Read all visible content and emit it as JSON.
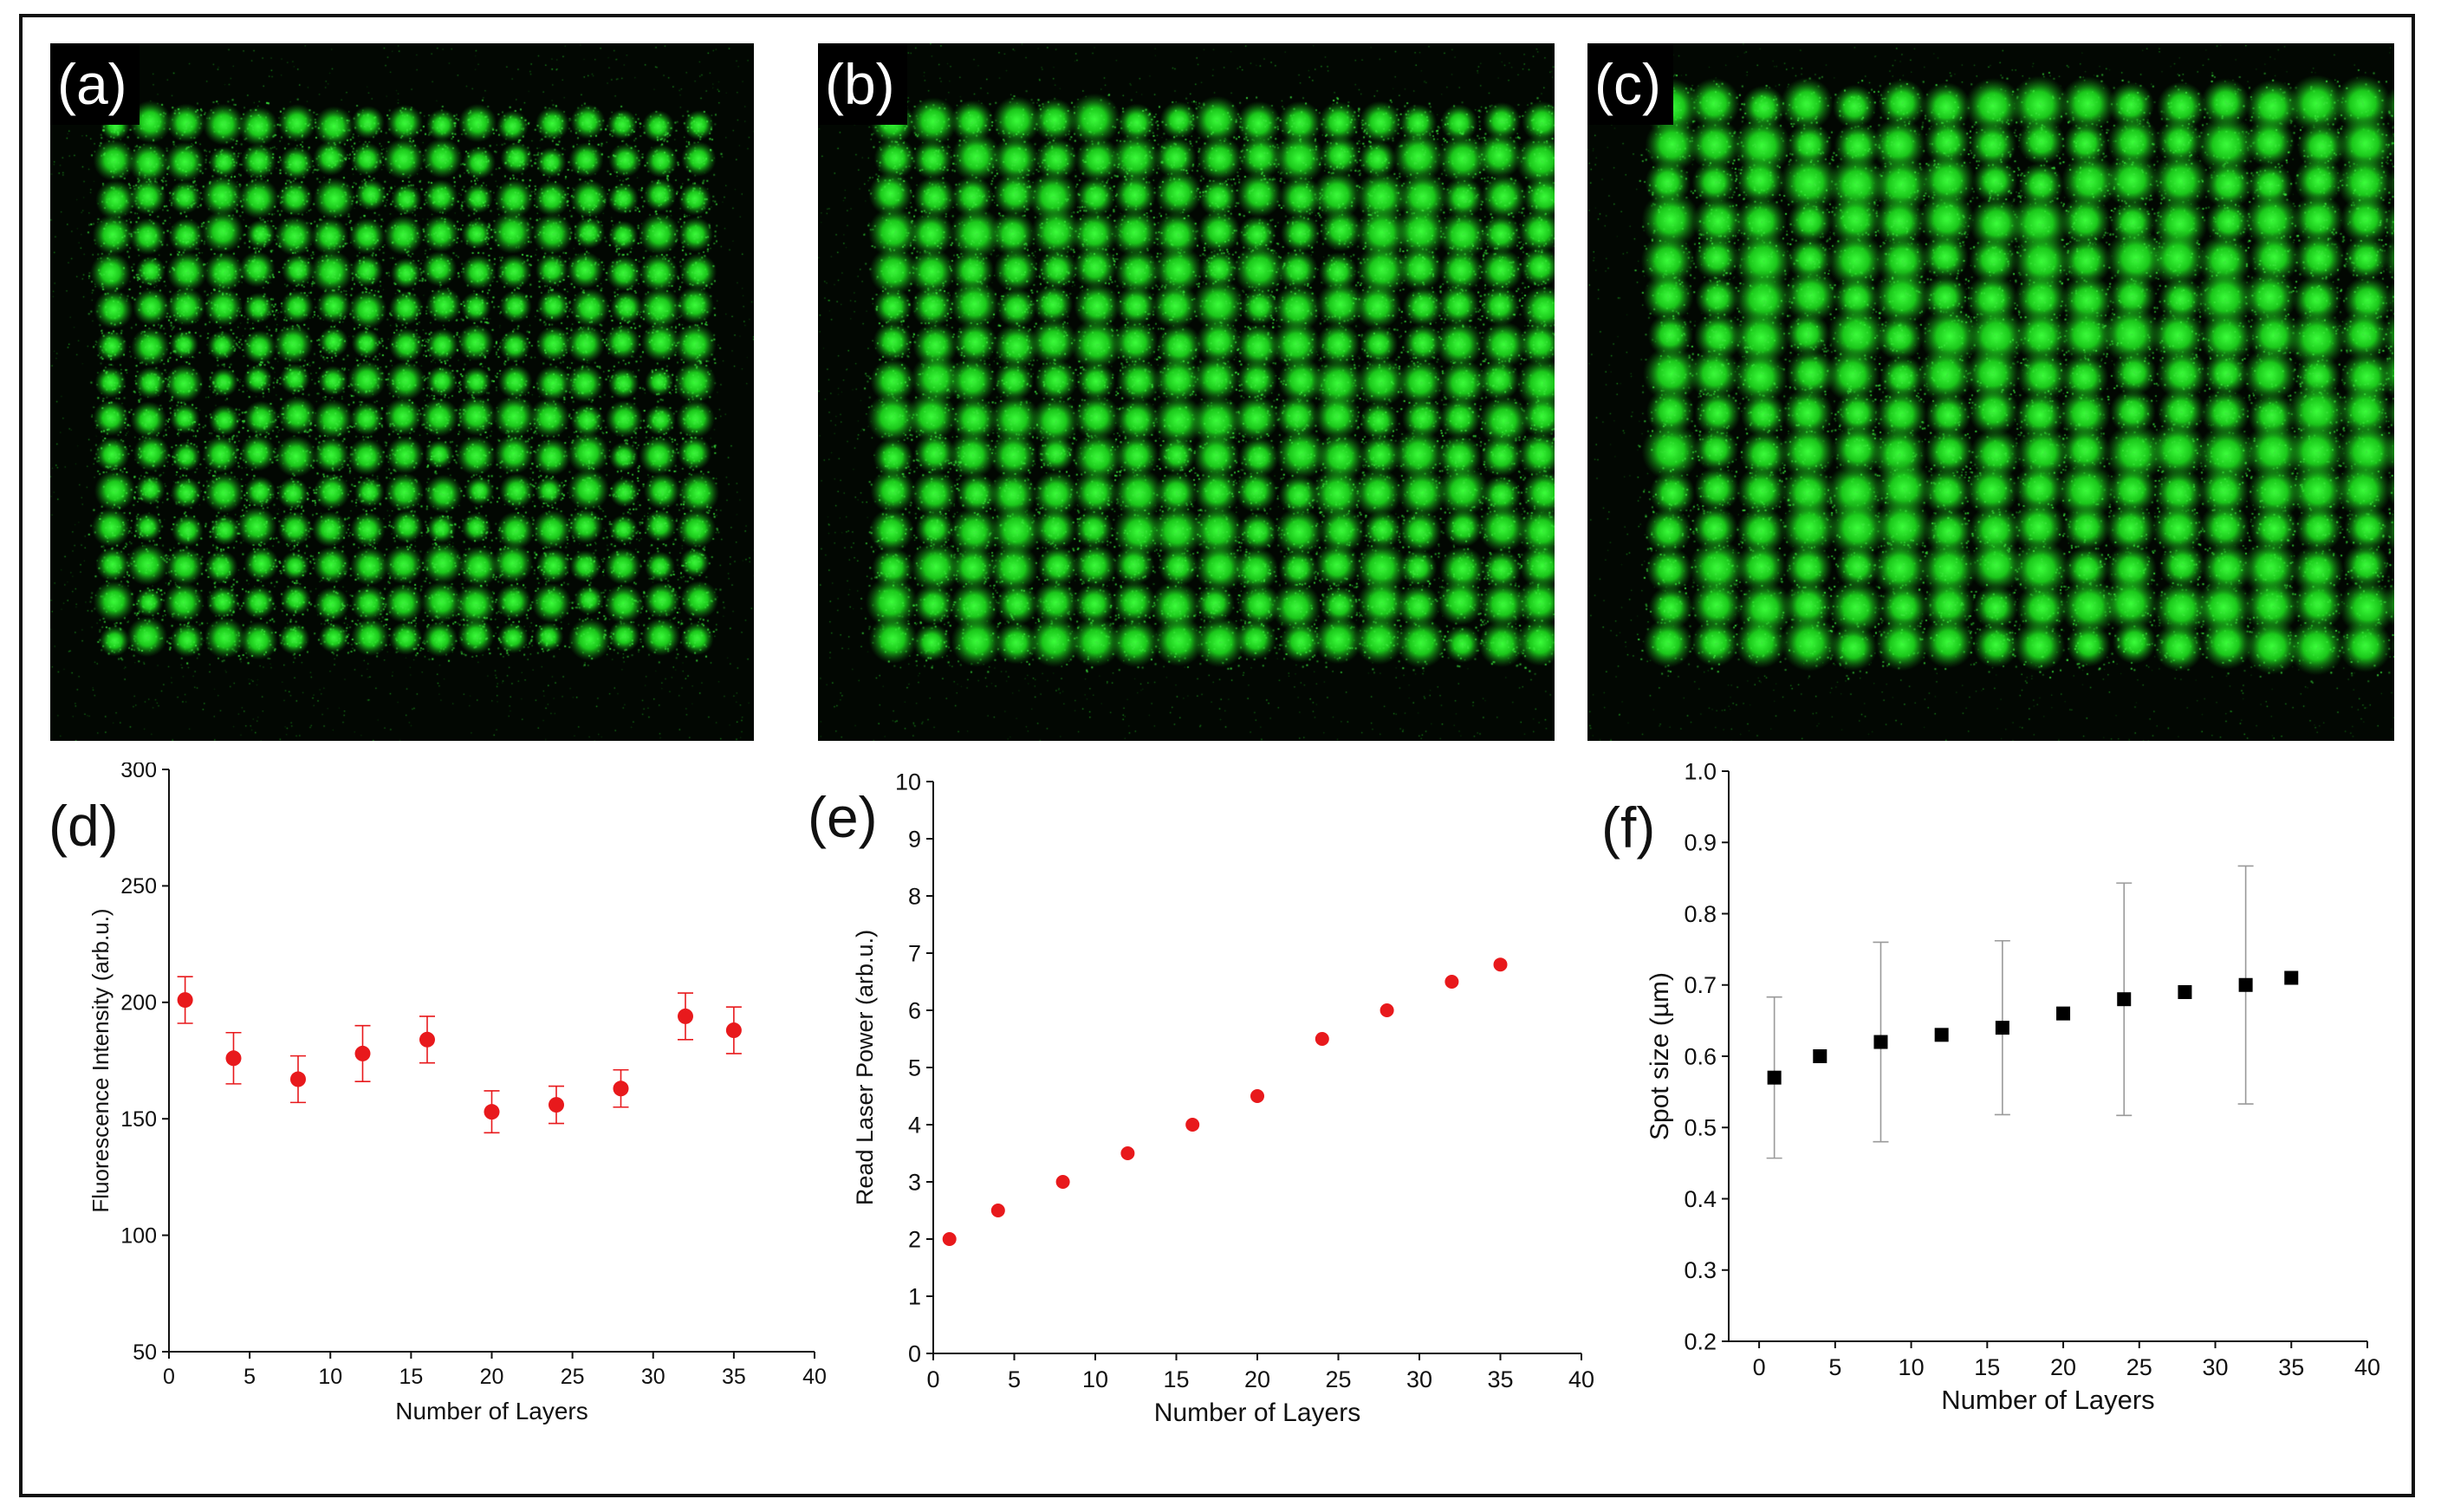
{
  "panels": {
    "a": {
      "label": "(a)",
      "cols": 17,
      "rows": 15
    },
    "b": {
      "label": "(b)",
      "cols": 17,
      "rows": 15
    },
    "c": {
      "label": "(c)",
      "cols": 17,
      "rows": 15
    }
  },
  "colors": {
    "spot": "#22dd22",
    "background": "#020702",
    "series_d": "#e8191c",
    "series_e": "#e8191c",
    "series_f": "#000000",
    "error_f": "#9a9a9a"
  },
  "chart_data": [
    {
      "id": "d",
      "panel_label": "(d)",
      "type": "scatter",
      "xlabel": "Number of Layers",
      "ylabel": "Fluorescence Intensity (arb.u.)",
      "xlim": [
        0,
        40
      ],
      "ylim": [
        50,
        300
      ],
      "xticks": [
        0,
        5,
        10,
        15,
        20,
        25,
        30,
        35,
        40
      ],
      "yticks": [
        50,
        100,
        150,
        200,
        250,
        300
      ],
      "x": [
        1,
        4,
        8,
        12,
        16,
        20,
        24,
        28,
        32,
        35
      ],
      "y": [
        201,
        176,
        167,
        178,
        184,
        153,
        156,
        163,
        194,
        188
      ],
      "err": [
        10,
        11,
        10,
        12,
        10,
        9,
        8,
        8,
        10,
        10
      ],
      "marker": "circle"
    },
    {
      "id": "e",
      "panel_label": "(e)",
      "type": "scatter",
      "xlabel": "Number of Layers",
      "ylabel": "Read Laser Power (arb.u.)",
      "xlim": [
        0,
        40
      ],
      "ylim": [
        0,
        10
      ],
      "xticks": [
        0,
        5,
        10,
        15,
        20,
        25,
        30,
        35,
        40
      ],
      "yticks": [
        0,
        1,
        2,
        3,
        4,
        5,
        6,
        7,
        8,
        9,
        10
      ],
      "x": [
        1,
        4,
        8,
        12,
        16,
        20,
        24,
        28,
        32,
        35
      ],
      "y": [
        2.0,
        2.5,
        3.0,
        3.5,
        4.0,
        4.5,
        5.5,
        6.0,
        6.5,
        6.8
      ],
      "marker": "circle"
    },
    {
      "id": "f",
      "panel_label": "(f)",
      "type": "scatter",
      "xlabel": "Number of Layers",
      "ylabel": "Spot size (µm)",
      "xlim": [
        -2,
        40
      ],
      "ylim": [
        0.2,
        1.0
      ],
      "xticks": [
        0,
        5,
        10,
        15,
        20,
        25,
        30,
        35,
        40
      ],
      "yticks": [
        0.2,
        0.3,
        0.4,
        0.5,
        0.6,
        0.7,
        0.8,
        0.9,
        1.0
      ],
      "x": [
        1,
        4,
        8,
        12,
        16,
        20,
        24,
        28,
        32,
        35
      ],
      "y": [
        0.57,
        0.6,
        0.62,
        0.63,
        0.64,
        0.66,
        0.68,
        0.69,
        0.7,
        0.71
      ],
      "err": [
        0.113,
        null,
        0.14,
        null,
        0.122,
        null,
        0.163,
        null,
        0.167,
        null
      ],
      "marker": "square"
    }
  ]
}
